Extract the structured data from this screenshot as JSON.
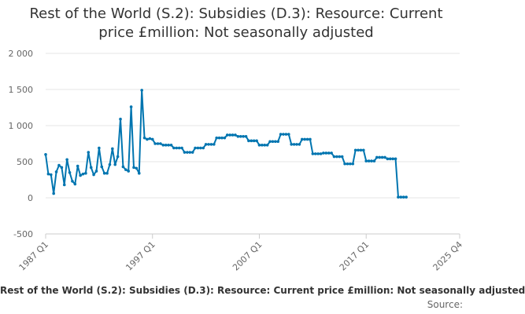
{
  "chart_data": {
    "type": "line",
    "title_lines": [
      "Rest of the World (S.2): Subsidies (D.3): Resource: Current",
      "price £million: Not seasonally adjusted"
    ],
    "caption": "Rest of the World (S.2): Subsidies (D.3): Resource: Current price £million: Not seasonally adjusted",
    "source_label": "Source:",
    "xlabel": "",
    "ylabel": "",
    "ylim": [
      -500,
      2000
    ],
    "y_ticks": [
      -500,
      0,
      500,
      1000,
      1500,
      2000
    ],
    "y_tick_labels": [
      "-500",
      "0",
      "500",
      "1 000",
      "1 500",
      "2 000"
    ],
    "x_ticks": [
      "1987 Q1",
      "1997 Q1",
      "2007 Q1",
      "2017 Q1",
      "2025 Q4"
    ],
    "grid": true,
    "legend": "none",
    "line_color": "#0075b0",
    "series": [
      {
        "x_start": "1987 Q1",
        "frequency": "quarterly",
        "values": [
          600,
          330,
          320,
          60,
          360,
          450,
          420,
          180,
          530,
          350,
          230,
          190,
          440,
          310,
          330,
          340,
          630,
          420,
          320,
          370,
          690,
          430,
          340,
          340,
          460,
          680,
          460,
          570,
          1090,
          430,
          390,
          370,
          1260,
          420,
          410,
          340,
          1490,
          830,
          810,
          820,
          810,
          750,
          750,
          750,
          730,
          730,
          730,
          730,
          690,
          690,
          690,
          690,
          630,
          630,
          630,
          630,
          690,
          690,
          690,
          690,
          740,
          740,
          740,
          740,
          830,
          830,
          830,
          830,
          870,
          870,
          870,
          870,
          850,
          850,
          850,
          850,
          790,
          790,
          790,
          790,
          730,
          730,
          730,
          730,
          780,
          780,
          780,
          780,
          880,
          880,
          880,
          880,
          740,
          740,
          740,
          740,
          810,
          810,
          810,
          810,
          610,
          610,
          610,
          610,
          620,
          620,
          620,
          620,
          570,
          570,
          570,
          570,
          470,
          470,
          470,
          470,
          660,
          660,
          660,
          660,
          510,
          510,
          510,
          510,
          560,
          560,
          560,
          560,
          540,
          540,
          540,
          540,
          10,
          10,
          10,
          10
        ]
      }
    ]
  }
}
